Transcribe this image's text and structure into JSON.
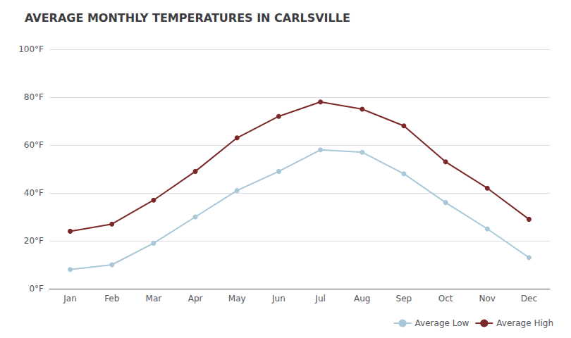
{
  "chart_data": {
    "type": "line",
    "title": "AVERAGE MONTHLY TEMPERATURES IN CARLSVILLE",
    "categories": [
      "Jan",
      "Feb",
      "Mar",
      "Apr",
      "May",
      "Jun",
      "Jul",
      "Aug",
      "Sep",
      "Oct",
      "Nov",
      "Dec"
    ],
    "series": [
      {
        "name": "Average Low",
        "color": "#a8c8d8",
        "values": [
          8,
          10,
          19,
          30,
          41,
          49,
          58,
          57,
          48,
          36,
          25,
          13
        ]
      },
      {
        "name": "Average High",
        "color": "#7a2828",
        "values": [
          24,
          27,
          37,
          49,
          63,
          72,
          78,
          75,
          68,
          53,
          42,
          29
        ]
      }
    ],
    "ylim": [
      0,
      100
    ],
    "yticks": [
      {
        "value": 0,
        "label": "0°F"
      },
      {
        "value": 20,
        "label": "20°F"
      },
      {
        "value": 40,
        "label": "40°F"
      },
      {
        "value": 60,
        "label": "60°F"
      },
      {
        "value": 80,
        "label": "80°F"
      },
      {
        "value": 100,
        "label": "100°F"
      }
    ],
    "grid": true,
    "legend": "lower right",
    "marker": "circle"
  }
}
